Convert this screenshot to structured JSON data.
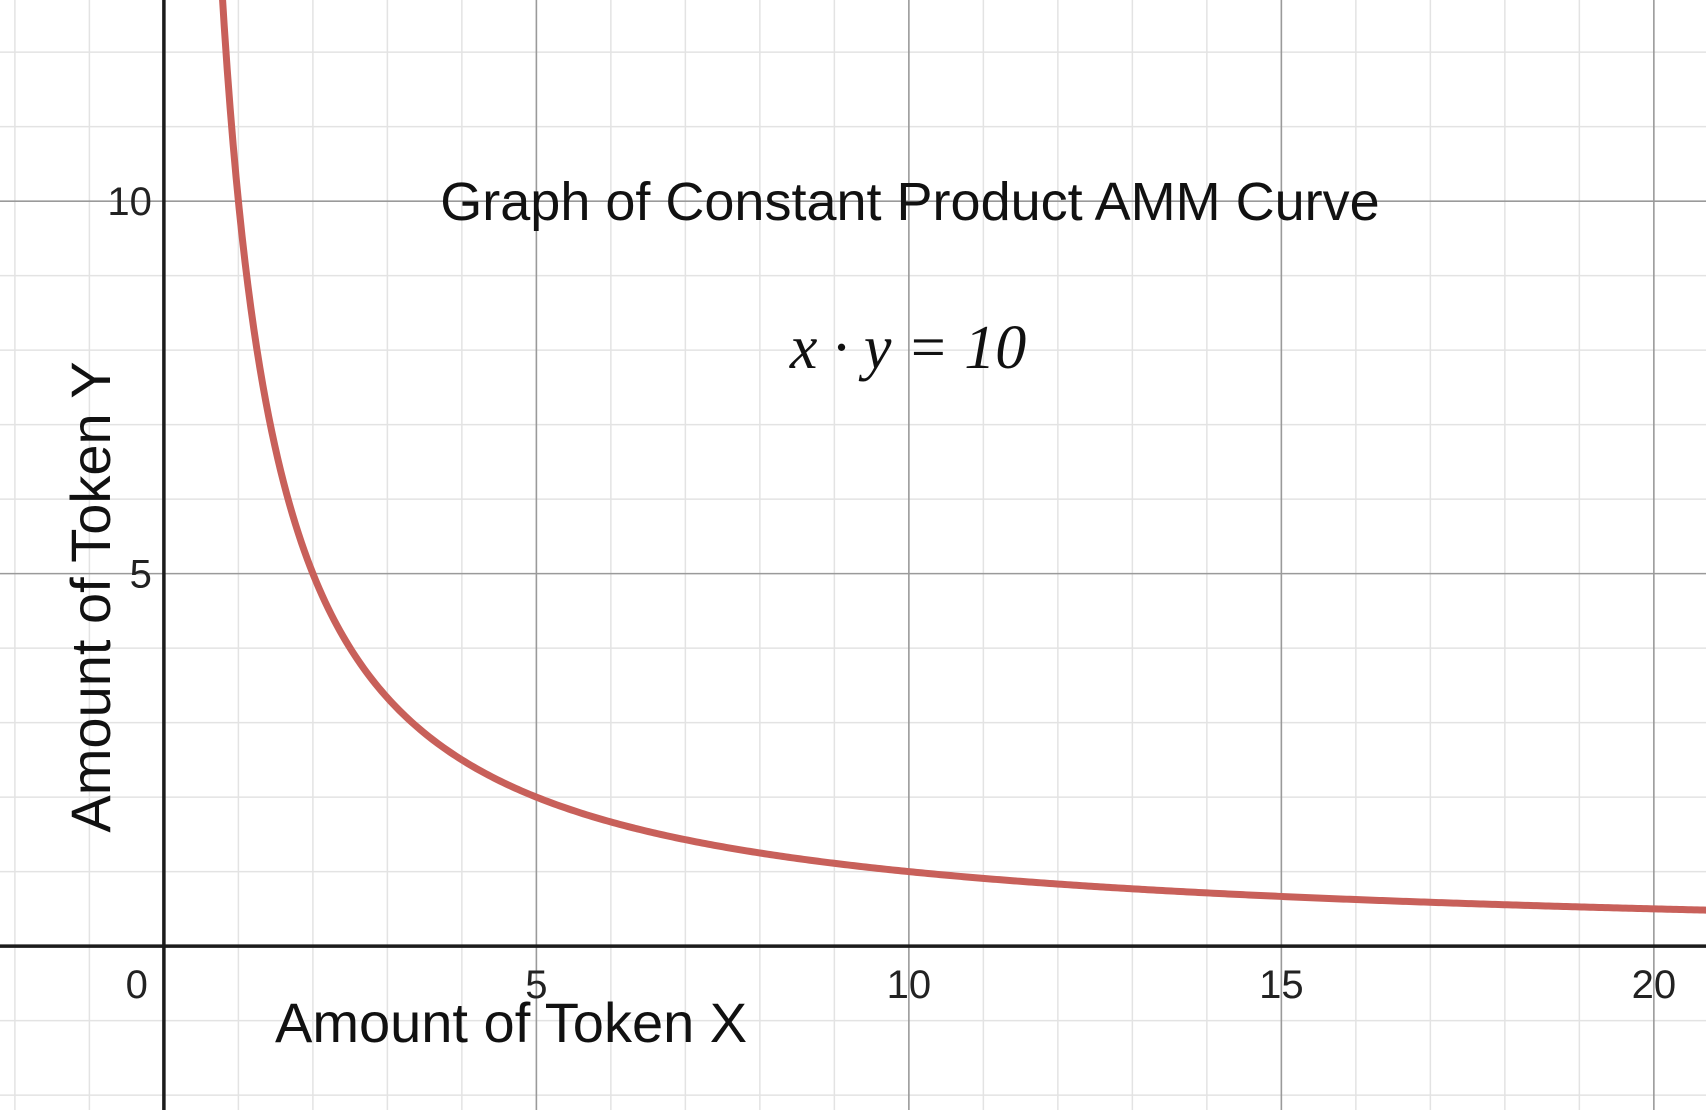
{
  "chart_data": {
    "type": "line",
    "title": "Graph of Constant Product AMM Curve",
    "equation": "x · y = 10",
    "xlabel": "Amount of Token X",
    "ylabel": "Amount of Token Y",
    "xlim": [
      -2.2,
      20.7
    ],
    "ylim": [
      -2.2,
      12.7
    ],
    "x_ticks": [
      5,
      10,
      15,
      20
    ],
    "y_ticks": [
      5,
      10
    ],
    "origin_label": "0",
    "grid": true,
    "legend": "none",
    "series": [
      {
        "color": "#c8605a",
        "function": "y = 10 / x",
        "x": [
          0.77,
          0.85,
          1,
          1.25,
          1.5,
          2,
          2.5,
          3,
          4,
          5,
          6,
          7,
          8,
          10,
          12,
          14,
          16,
          18,
          20,
          20.7
        ],
        "y": [
          12.99,
          11.76,
          10,
          8,
          6.67,
          5,
          4,
          3.33,
          2.5,
          2,
          1.67,
          1.43,
          1.25,
          1,
          0.83,
          0.71,
          0.63,
          0.56,
          0.5,
          0.48
        ]
      }
    ]
  }
}
